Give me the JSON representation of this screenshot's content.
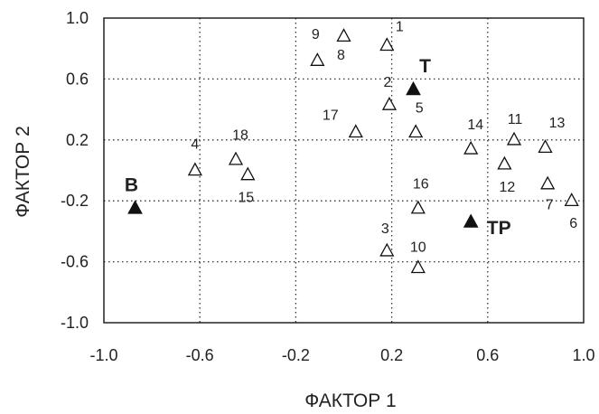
{
  "chart_data": {
    "type": "scatter",
    "title": "",
    "xlabel": "ФАКТОР 1",
    "ylabel": "ФАКТОР 2",
    "xlim": [
      -1.0,
      1.0
    ],
    "ylim": [
      -1.0,
      1.0
    ],
    "x_ticks": [
      "-1.0",
      "-0.6",
      "-0.2",
      "0.2",
      "0.6",
      "1.0"
    ],
    "y_ticks": [
      "1.0",
      "0.6",
      "0.2",
      "-0.2",
      "-0.6",
      "-1.0"
    ],
    "grid": "dotted",
    "series": [
      {
        "marker": "open-triangle",
        "points": [
          {
            "label": "1",
            "x": 0.18,
            "y": 0.82
          },
          {
            "label": "2",
            "x": 0.19,
            "y": 0.43
          },
          {
            "label": "3",
            "x": 0.18,
            "y": -0.53
          },
          {
            "label": "4",
            "x": -0.62,
            "y": 0.0
          },
          {
            "label": "5",
            "x": 0.3,
            "y": 0.25
          },
          {
            "label": "6",
            "x": 0.95,
            "y": -0.2
          },
          {
            "label": "7",
            "x": 0.85,
            "y": -0.09
          },
          {
            "label": "8",
            "x": 0.0,
            "y": 0.88
          },
          {
            "label": "9",
            "x": -0.11,
            "y": 0.72
          },
          {
            "label": "10",
            "x": 0.31,
            "y": -0.64
          },
          {
            "label": "11",
            "x": 0.71,
            "y": 0.2
          },
          {
            "label": "12",
            "x": 0.67,
            "y": 0.04
          },
          {
            "label": "13",
            "x": 0.84,
            "y": 0.15
          },
          {
            "label": "14",
            "x": 0.53,
            "y": 0.14
          },
          {
            "label": "15",
            "x": -0.4,
            "y": -0.03
          },
          {
            "label": "16",
            "x": 0.31,
            "y": -0.25
          },
          {
            "label": "17",
            "x": 0.05,
            "y": 0.25
          },
          {
            "label": "18",
            "x": -0.45,
            "y": 0.07
          }
        ]
      },
      {
        "marker": "filled-triangle",
        "points": [
          {
            "label": "В",
            "x": -0.87,
            "y": -0.25
          },
          {
            "label": "Т",
            "x": 0.29,
            "y": 0.53
          },
          {
            "label": "ТР",
            "x": 0.53,
            "y": -0.34
          }
        ]
      }
    ]
  }
}
